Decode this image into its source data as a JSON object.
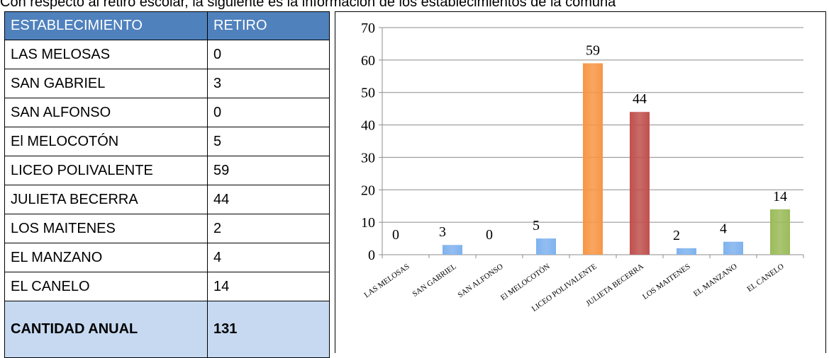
{
  "caption": "Con respecto al retiro escolar, la siguiente es la información de los establecimientos de la comuna",
  "table": {
    "headers": [
      "ESTABLECIMIENTO",
      "RETIRO"
    ],
    "rows": [
      {
        "name": "LAS MELOSAS",
        "value": "0"
      },
      {
        "name": "SAN GABRIEL",
        "value": "3"
      },
      {
        "name": "SAN ALFONSO",
        "value": "0"
      },
      {
        "name": "El MELOCOTÓN",
        "value": "5"
      },
      {
        "name": "LICEO POLIVALENTE",
        "value": "59"
      },
      {
        "name": "JULIETA BECERRA",
        "value": "44"
      },
      {
        "name": "LOS MAITENES",
        "value": "2"
      },
      {
        "name": "EL MANZANO",
        "value": "4"
      },
      {
        "name": "EL CANELO",
        "value": "14"
      }
    ],
    "total_label": "CANTIDAD ANUAL",
    "total_value": "131",
    "colors": {
      "header": "#4f81bd",
      "total": "#c6d9f1"
    }
  },
  "chart_data": {
    "type": "bar",
    "categories": [
      "LAS MELOSAS",
      "SAN GABRIEL",
      "SAN ALFONSO",
      "El MELOCOTÓN",
      "LICEO POLIVALENTE",
      "JULIETA BECERRA",
      "LOS MAITENES",
      "EL MANZANO",
      "EL CANELO"
    ],
    "values": [
      0,
      3,
      0,
      5,
      59,
      44,
      2,
      4,
      14
    ],
    "bar_colors": [
      "#7fb2ee",
      "#7fb2ee",
      "#7fb2ee",
      "#7fb2ee",
      "#f79646",
      "#c0504d",
      "#7fb2ee",
      "#7fb2ee",
      "#9bbb59"
    ],
    "ylim": [
      0,
      70
    ],
    "yticks": [
      0,
      10,
      20,
      30,
      40,
      50,
      60,
      70
    ],
    "grid": true,
    "legend": "none",
    "data_labels": true,
    "title": "",
    "xlabel": "",
    "ylabel": ""
  }
}
